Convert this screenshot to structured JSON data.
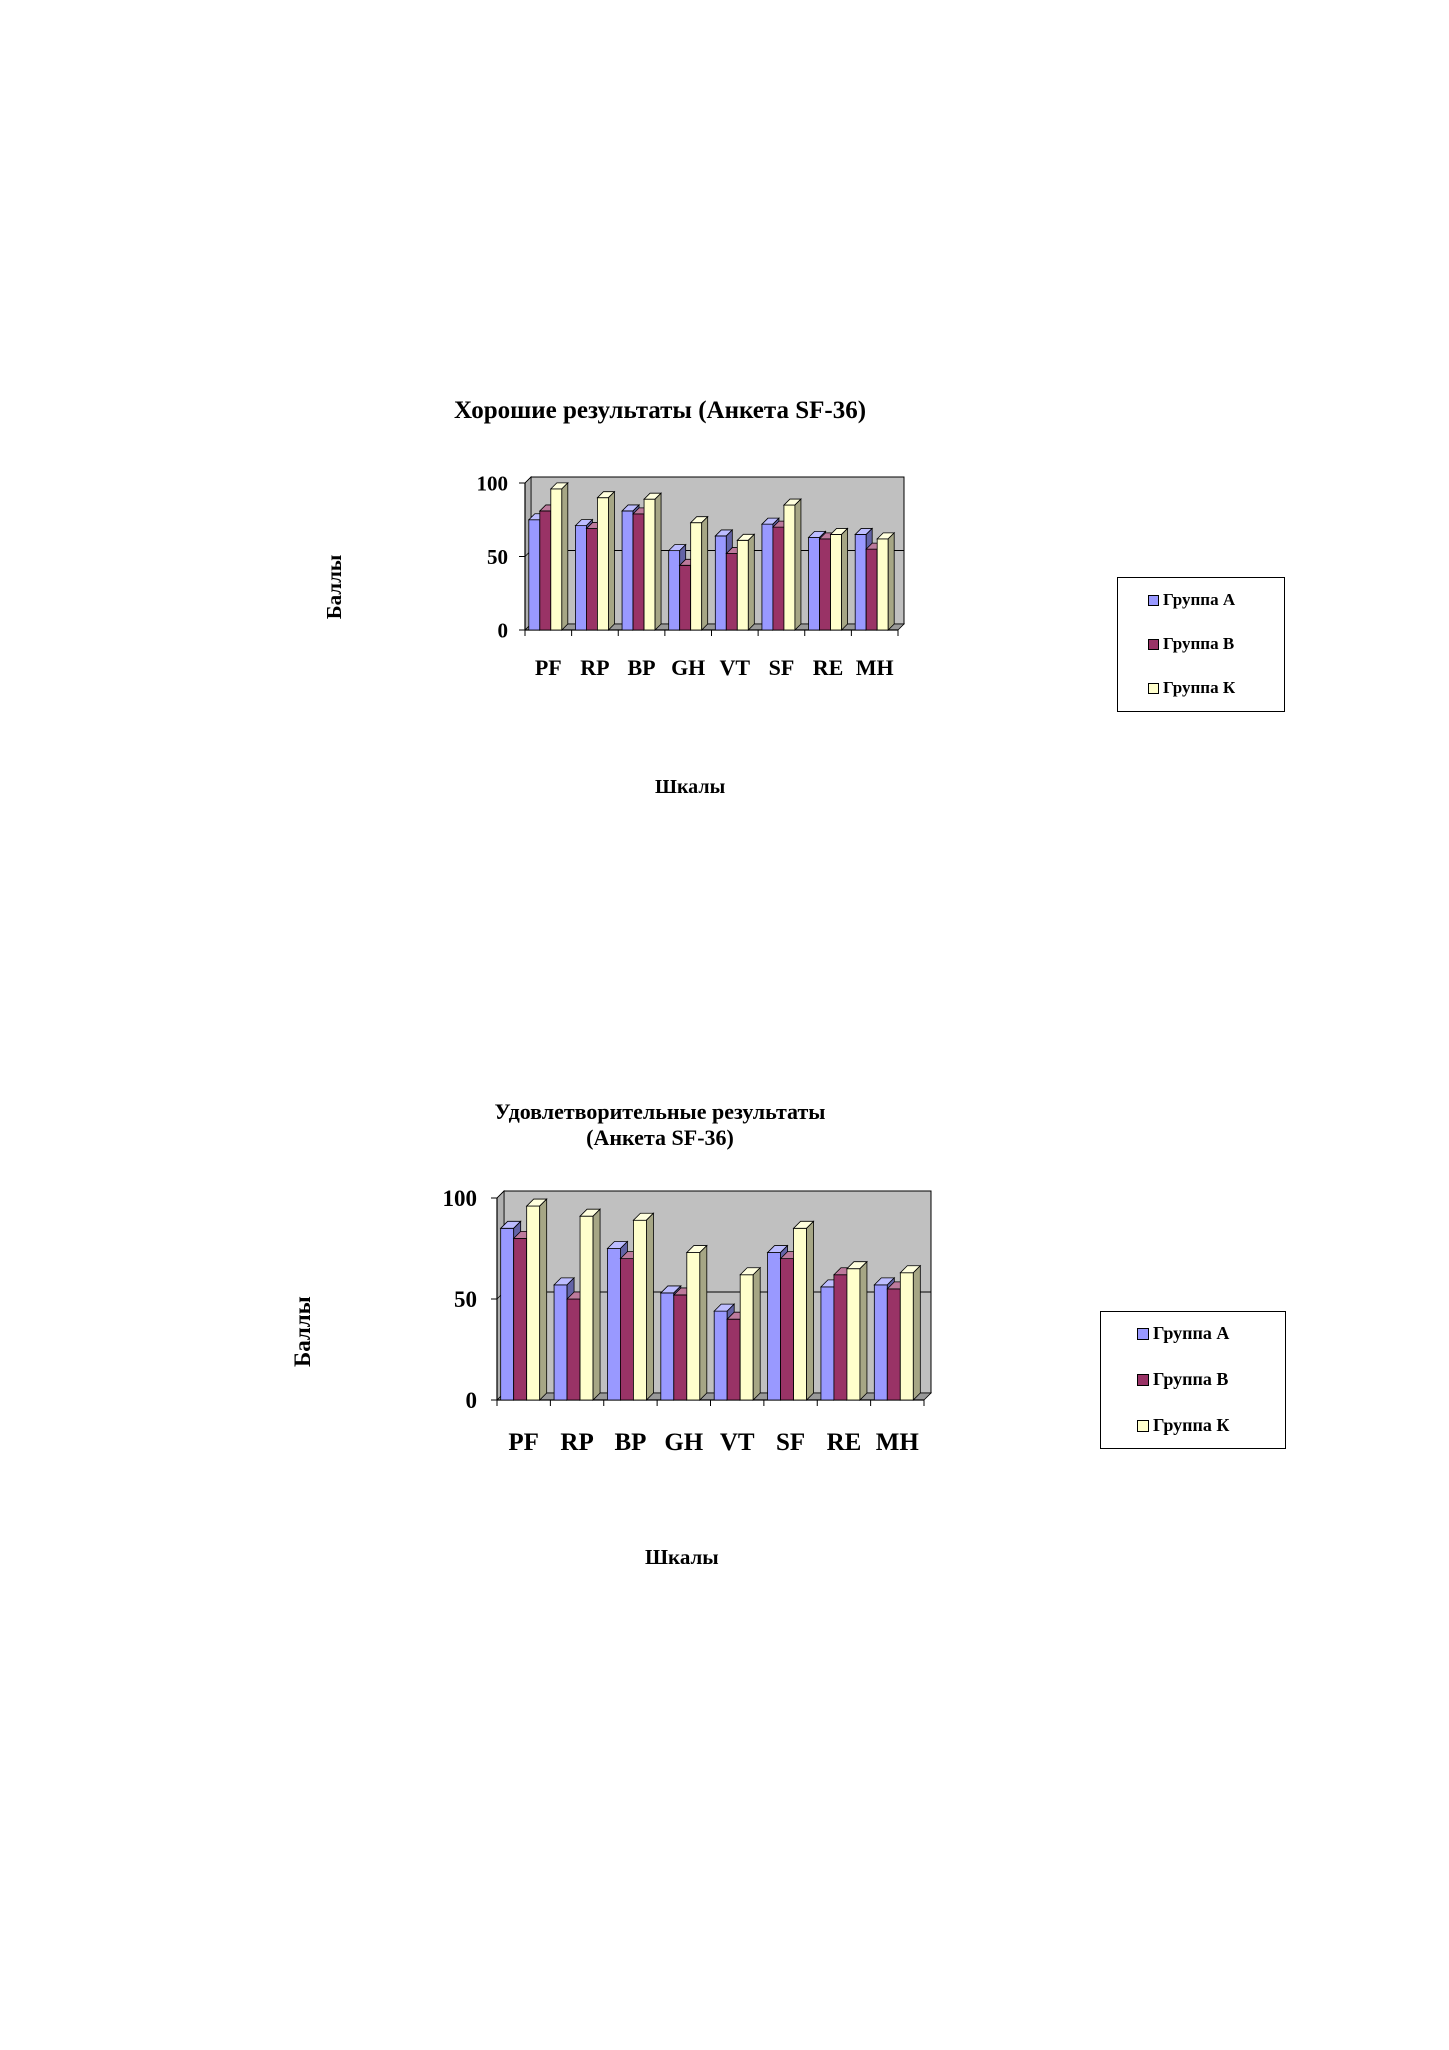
{
  "chart_data": [
    {
      "type": "bar",
      "title": "Хорошие результаты (Анкета SF-36)",
      "xlabel": "Шкалы",
      "ylabel": "Баллы",
      "categories": [
        "PF",
        "RP",
        "BP",
        "GH",
        "VT",
        "SF",
        "RE",
        "MH"
      ],
      "yticks": [
        "0",
        "50",
        "100"
      ],
      "ylim": [
        0,
        100
      ],
      "grid": true,
      "legend_position": "right",
      "series": [
        {
          "name": "Группа А",
          "color": "#9999ff",
          "values": [
            75,
            71,
            81,
            54,
            64,
            72,
            63,
            65
          ]
        },
        {
          "name": "Группа В",
          "color": "#993366",
          "values": [
            81,
            69,
            79,
            44,
            52,
            70,
            62,
            55
          ]
        },
        {
          "name": "Группа К",
          "color": "#ffffcc",
          "values": [
            96,
            90,
            89,
            73,
            61,
            85,
            65,
            62
          ]
        }
      ]
    },
    {
      "type": "bar",
      "title": "Удовлетворительные результаты (Анкета SF-36)",
      "title_lines": [
        "Удовлетворительные результаты",
        "(Анкета SF-36)"
      ],
      "xlabel": "Шкалы",
      "ylabel": "Баллы",
      "categories": [
        "PF",
        "RP",
        "BP",
        "GH",
        "VT",
        "SF",
        "RE",
        "MH"
      ],
      "yticks": [
        "0",
        "50",
        "100"
      ],
      "ylim": [
        0,
        100
      ],
      "grid": true,
      "legend_position": "right",
      "series": [
        {
          "name": "Группа А",
          "color": "#9999ff",
          "values": [
            85,
            57,
            75,
            53,
            44,
            73,
            56,
            57
          ]
        },
        {
          "name": "Группа В",
          "color": "#993366",
          "values": [
            80,
            50,
            70,
            52,
            40,
            70,
            62,
            55
          ]
        },
        {
          "name": "Группа К",
          "color": "#ffffcc",
          "values": [
            96,
            91,
            89,
            73,
            62,
            85,
            65,
            63
          ]
        }
      ]
    }
  ]
}
